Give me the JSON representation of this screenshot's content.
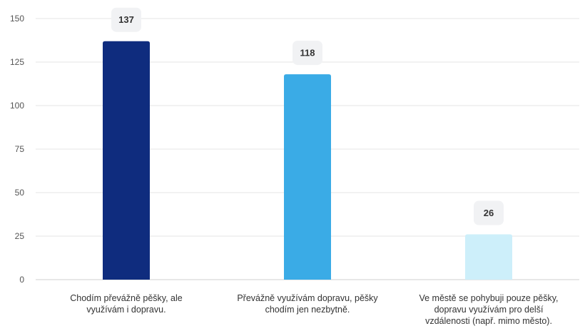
{
  "chart_data": {
    "type": "bar",
    "categories": [
      [
        "Chodím převážně pěšky, ale",
        "využívám i dopravu."
      ],
      [
        "Převážně využívám dopravu, pěšky",
        "chodím jen nezbytně."
      ],
      [
        "Ve městě se pohybuji pouze pěšky,",
        "dopravu využívám pro delší",
        "vzdálenosti (např. mimo město)."
      ]
    ],
    "values": [
      137,
      118,
      26
    ],
    "value_labels": [
      "137",
      "118",
      "26"
    ],
    "colors": [
      "#0f2c7e",
      "#3aabe6",
      "#cdeffa"
    ],
    "yticks": [
      0,
      25,
      50,
      75,
      100,
      125,
      150
    ],
    "ytick_labels": [
      "0",
      "25",
      "50",
      "75",
      "100",
      "125",
      "150"
    ],
    "ylim": [
      0,
      150
    ],
    "grid": true,
    "title": "",
    "xlabel": "",
    "ylabel": ""
  }
}
